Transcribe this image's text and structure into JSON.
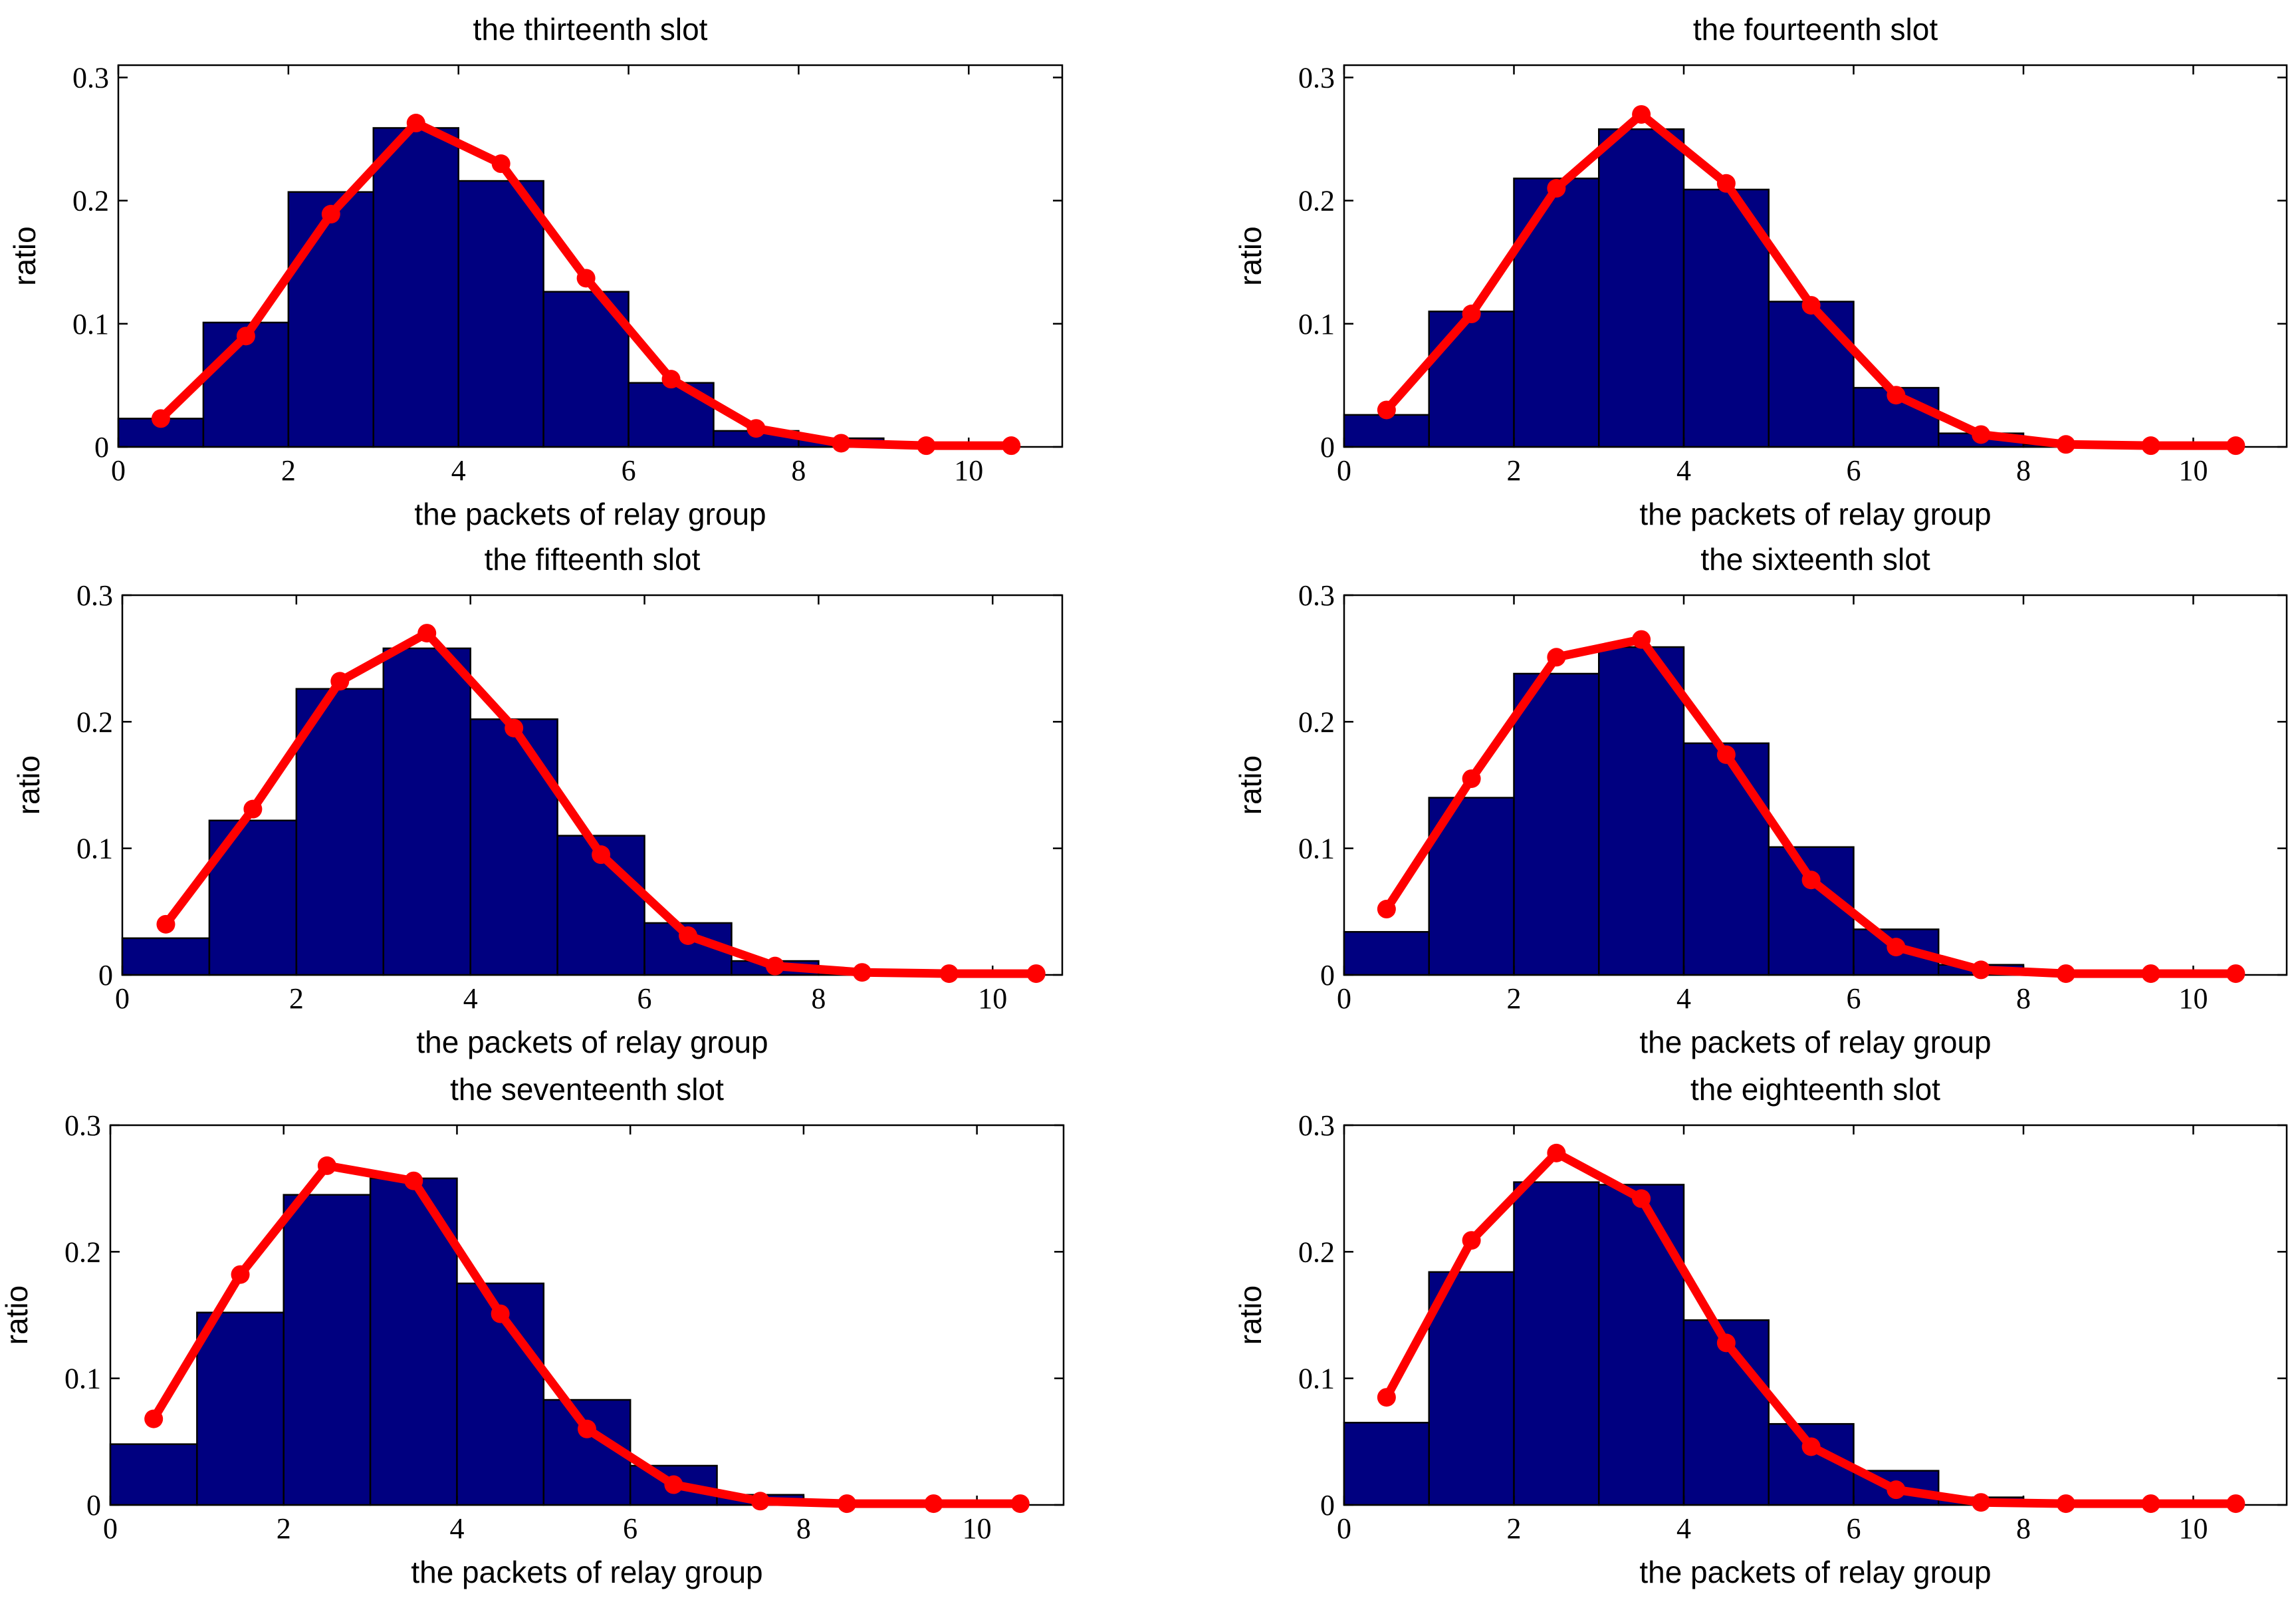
{
  "figure": {
    "colors": {
      "bar": "#000080",
      "curve": "#ff0000"
    }
  },
  "chart_data": [
    {
      "type": "bar",
      "title": "the thirteenth slot",
      "xlabel": "the packets of relay group",
      "ylabel": "ratio",
      "xlim": [
        0,
        11.1
      ],
      "ylim": [
        0,
        0.31
      ],
      "xticks": [
        0,
        2,
        4,
        6,
        8,
        10
      ],
      "yticks": [
        0,
        0.1,
        0.2,
        0.3
      ],
      "xtick_labels": [
        "0",
        "2",
        "4",
        "6",
        "8",
        "10"
      ],
      "ytick_labels": [
        "0",
        "0.1",
        "0.2",
        "0.3"
      ],
      "bin_edges": [
        0,
        1,
        2,
        3,
        4,
        5,
        6,
        7,
        8,
        9,
        10,
        11
      ],
      "bars": [
        0.023,
        0.101,
        0.207,
        0.259,
        0.216,
        0.126,
        0.052,
        0.013,
        0.007,
        0.002,
        0.0
      ],
      "line": {
        "x": [
          0.5,
          1.5,
          2.5,
          3.5,
          4.5,
          5.5,
          6.5,
          7.5,
          8.5,
          9.5,
          10.5
        ],
        "y": [
          0.023,
          0.09,
          0.189,
          0.263,
          0.23,
          0.137,
          0.055,
          0.015,
          0.003,
          0.001,
          0.001
        ]
      }
    },
    {
      "type": "bar",
      "title": "the fourteenth slot",
      "xlabel": "the packets of relay group",
      "ylabel": "ratio",
      "xlim": [
        0,
        11.1
      ],
      "ylim": [
        0,
        0.31
      ],
      "xticks": [
        0,
        2,
        4,
        6,
        8,
        10
      ],
      "yticks": [
        0,
        0.1,
        0.2,
        0.3
      ],
      "xtick_labels": [
        "0",
        "2",
        "4",
        "6",
        "8",
        "10"
      ],
      "ytick_labels": [
        "0",
        "0.1",
        "0.2",
        "0.3"
      ],
      "bin_edges": [
        0,
        1,
        2,
        3,
        4,
        5,
        6,
        7,
        8,
        9,
        10,
        11
      ],
      "bars": [
        0.026,
        0.11,
        0.218,
        0.258,
        0.209,
        0.118,
        0.048,
        0.011,
        0.002,
        0.001,
        0.0
      ],
      "line": {
        "x": [
          0.5,
          1.5,
          2.5,
          3.5,
          4.5,
          5.5,
          6.5,
          7.5,
          8.5,
          9.5,
          10.5
        ],
        "y": [
          0.03,
          0.108,
          0.21,
          0.27,
          0.214,
          0.115,
          0.042,
          0.01,
          0.002,
          0.001,
          0.001
        ]
      }
    },
    {
      "type": "bar",
      "title": "the fifteenth slot",
      "xlabel": "the packets of relay group",
      "ylabel": "ratio",
      "xlim": [
        0,
        10.8
      ],
      "ylim": [
        0,
        0.3
      ],
      "xticks": [
        0,
        2,
        4,
        6,
        8,
        10
      ],
      "yticks": [
        0,
        0.1,
        0.2,
        0.3
      ],
      "xtick_labels": [
        "0",
        "2",
        "4",
        "6",
        "8",
        "10"
      ],
      "ytick_labels": [
        "0",
        "0.1",
        "0.2",
        "0.3"
      ],
      "bin_edges": [
        0,
        1,
        2,
        3,
        4,
        5,
        6,
        7,
        8,
        9,
        10,
        11
      ],
      "bars": [
        0.029,
        0.122,
        0.226,
        0.258,
        0.202,
        0.11,
        0.041,
        0.011,
        0.002,
        0.001,
        0.0
      ],
      "line": {
        "x": [
          0.5,
          1.5,
          2.5,
          3.5,
          4.5,
          5.5,
          6.5,
          7.5,
          8.5,
          9.5,
          10.5
        ],
        "y": [
          0.04,
          0.131,
          0.232,
          0.27,
          0.195,
          0.095,
          0.031,
          0.007,
          0.002,
          0.001,
          0.001
        ]
      }
    },
    {
      "type": "bar",
      "title": "the sixteenth slot",
      "xlabel": "the packets of relay group",
      "ylabel": "ratio",
      "xlim": [
        0,
        11.1
      ],
      "ylim": [
        0,
        0.3
      ],
      "xticks": [
        0,
        2,
        4,
        6,
        8,
        10
      ],
      "yticks": [
        0,
        0.1,
        0.2,
        0.3
      ],
      "xtick_labels": [
        "0",
        "2",
        "4",
        "6",
        "8",
        "10"
      ],
      "ytick_labels": [
        "0",
        "0.1",
        "0.2",
        "0.3"
      ],
      "bin_edges": [
        0,
        1,
        2,
        3,
        4,
        5,
        6,
        7,
        8,
        9,
        10,
        11
      ],
      "bars": [
        0.034,
        0.14,
        0.238,
        0.259,
        0.183,
        0.101,
        0.036,
        0.008,
        0.002,
        0.001,
        0.0
      ],
      "line": {
        "x": [
          0.5,
          1.5,
          2.5,
          3.5,
          4.5,
          5.5,
          6.5,
          7.5,
          8.5,
          9.5,
          10.5
        ],
        "y": [
          0.052,
          0.155,
          0.251,
          0.265,
          0.174,
          0.075,
          0.022,
          0.004,
          0.001,
          0.001,
          0.001
        ]
      }
    },
    {
      "type": "bar",
      "title": "the seventeenth slot",
      "xlabel": "the packets of relay group",
      "ylabel": "ratio",
      "xlim": [
        0,
        11.0
      ],
      "ylim": [
        0,
        0.3
      ],
      "xticks": [
        0,
        2,
        4,
        6,
        8,
        10
      ],
      "yticks": [
        0,
        0.1,
        0.2,
        0.3
      ],
      "xtick_labels": [
        "0",
        "2",
        "4",
        "6",
        "8",
        "10"
      ],
      "ytick_labels": [
        "0",
        "0.1",
        "0.2",
        "0.3"
      ],
      "bin_edges": [
        0,
        1,
        2,
        3,
        4,
        5,
        6,
        7,
        8,
        9,
        10,
        11
      ],
      "bars": [
        0.048,
        0.152,
        0.245,
        0.258,
        0.175,
        0.083,
        0.031,
        0.008,
        0.002,
        0.001,
        0.0
      ],
      "line": {
        "x": [
          0.5,
          1.5,
          2.5,
          3.5,
          4.5,
          5.5,
          6.5,
          7.5,
          8.5,
          9.5,
          10.5
        ],
        "y": [
          0.068,
          0.182,
          0.268,
          0.256,
          0.151,
          0.06,
          0.016,
          0.003,
          0.001,
          0.001,
          0.001
        ]
      }
    },
    {
      "type": "bar",
      "title": "the eighteenth slot",
      "xlabel": "the packets of relay group",
      "ylabel": "ratio",
      "xlim": [
        0,
        11.1
      ],
      "ylim": [
        0,
        0.3
      ],
      "xticks": [
        0,
        2,
        4,
        6,
        8,
        10
      ],
      "yticks": [
        0,
        0.1,
        0.2,
        0.3
      ],
      "xtick_labels": [
        "0",
        "2",
        "4",
        "6",
        "8",
        "10"
      ],
      "ytick_labels": [
        "0",
        "0.1",
        "0.2",
        "0.3"
      ],
      "bin_edges": [
        0,
        1,
        2,
        3,
        4,
        5,
        6,
        7,
        8,
        9,
        10,
        11
      ],
      "bars": [
        0.065,
        0.184,
        0.255,
        0.253,
        0.146,
        0.064,
        0.027,
        0.006,
        0.002,
        0.001,
        0.0
      ],
      "line": {
        "x": [
          0.5,
          1.5,
          2.5,
          3.5,
          4.5,
          5.5,
          6.5,
          7.5,
          8.5,
          9.5,
          10.5
        ],
        "y": [
          0.085,
          0.209,
          0.278,
          0.242,
          0.128,
          0.046,
          0.012,
          0.002,
          0.001,
          0.001,
          0.001
        ]
      }
    }
  ]
}
